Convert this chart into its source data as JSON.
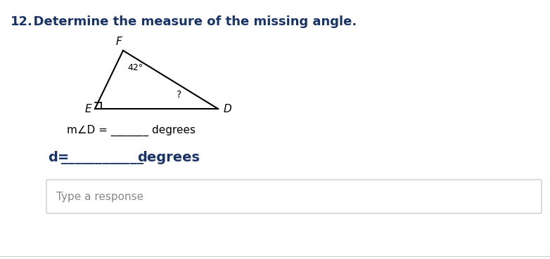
{
  "title_num": "12.",
  "title_text": "  Determine the measure of the missing angle.",
  "title_fontsize": 13,
  "title_color": "#1a3366",
  "title_weight": "bold",
  "bg_color": "#ffffff",
  "label_F": "F",
  "label_E": "E",
  "label_D": "D",
  "angle_label": "42°",
  "question_mark": "?",
  "mangle_line": "m∠D = _______ degrees",
  "d_line": "d=________degrees",
  "textbox_label": "Type a response",
  "triangle_color": "#000000",
  "text_color": "#1a3366"
}
